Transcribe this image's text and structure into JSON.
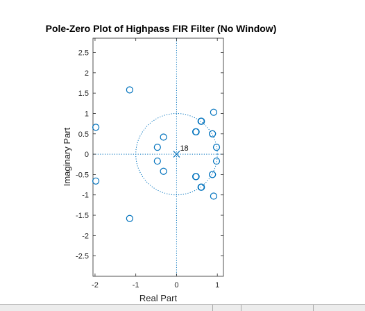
{
  "window": {
    "background": "#ffffff",
    "status_bar_color": "#ececec"
  },
  "chart_data": {
    "type": "scatter",
    "title": "Pole-Zero Plot of Highpass FIR Filter (No Window)",
    "xlabel": "Real Part",
    "ylabel": "Imaginary Part",
    "xlim": [
      -2.05,
      1.15
    ],
    "ylim": [
      -3.0,
      2.85
    ],
    "xticks": [
      -2,
      -1,
      0,
      1
    ],
    "xtick_labels": [
      "-2",
      "-1",
      "0",
      "1"
    ],
    "yticks": [
      -2.5,
      -2,
      -1.5,
      -1,
      -0.5,
      0,
      0.5,
      1,
      1.5,
      2,
      2.5
    ],
    "ytick_labels": [
      "-2.5",
      "-2",
      "-1.5",
      "-1",
      "-0.5",
      "0",
      "0.5",
      "1",
      "1.5",
      "2",
      "2.5"
    ],
    "grid": false,
    "unit_circle": true,
    "marker_color": "#0072bd",
    "series": [
      {
        "marker": "o",
        "x": [
          -1.98,
          -1.98,
          -1.15,
          -1.15,
          0.91,
          0.91,
          0.61,
          0.61,
          0.47,
          0.47,
          0.88,
          0.88,
          0.98,
          0.98,
          0.48,
          0.48,
          0.6,
          0.6,
          0.88,
          0.88,
          -0.32,
          -0.32,
          -0.47,
          -0.47
        ],
        "y": [
          0.66,
          -0.66,
          1.58,
          -1.58,
          1.03,
          -1.03,
          0.81,
          -0.81,
          0.55,
          -0.55,
          0.5,
          -0.5,
          0.17,
          -0.17,
          0.55,
          -0.55,
          0.81,
          -0.81,
          0.5,
          -0.5,
          0.42,
          -0.42,
          0.17,
          -0.17
        ]
      },
      {
        "marker": "x",
        "x": [
          0
        ],
        "y": [
          0
        ],
        "label": "18"
      }
    ]
  }
}
